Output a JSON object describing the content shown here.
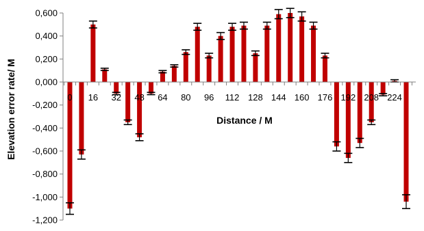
{
  "chart_data": {
    "type": "bar",
    "title": "",
    "xlabel": "Distance / M",
    "ylabel": "Elevation error rate/ M",
    "ylim": [
      -1.2,
      0.6
    ],
    "y_ticks": [
      "0,600",
      "0,400",
      "0,200",
      "0,000",
      "-0,200",
      "-0,400",
      "-0,600",
      "-0,800",
      "-1,000",
      "-1,200"
    ],
    "y_tick_values": [
      0.6,
      0.4,
      0.2,
      0.0,
      -0.2,
      -0.4,
      -0.6,
      -0.8,
      -1.0,
      -1.2
    ],
    "x": [
      0,
      8,
      16,
      24,
      32,
      40,
      48,
      56,
      64,
      72,
      80,
      88,
      96,
      104,
      112,
      120,
      128,
      136,
      144,
      152,
      160,
      168,
      176,
      184,
      192,
      200,
      208,
      216,
      224,
      232
    ],
    "x_tick_labels": [
      "0",
      "16",
      "32",
      "48",
      "64",
      "80",
      "96",
      "112",
      "128",
      "144",
      "160",
      "176",
      "192",
      "208",
      "224"
    ],
    "x_tick_positions": [
      0,
      16,
      32,
      48,
      64,
      80,
      96,
      112,
      128,
      144,
      160,
      176,
      192,
      208,
      224
    ],
    "values": [
      -1.1,
      -0.63,
      0.5,
      0.11,
      -0.1,
      -0.35,
      -0.48,
      -0.1,
      0.09,
      0.14,
      0.26,
      0.48,
      0.23,
      0.4,
      0.48,
      0.49,
      0.25,
      0.49,
      0.59,
      0.6,
      0.57,
      0.49,
      0.23,
      -0.56,
      -0.66,
      -0.53,
      -0.35,
      -0.11,
      0.01,
      -1.04
    ],
    "error": [
      0.05,
      0.04,
      0.03,
      0.01,
      0.01,
      0.02,
      0.03,
      0.01,
      0.01,
      0.01,
      0.02,
      0.03,
      0.02,
      0.03,
      0.03,
      0.03,
      0.02,
      0.03,
      0.04,
      0.04,
      0.04,
      0.03,
      0.02,
      0.04,
      0.04,
      0.04,
      0.02,
      0.01,
      0.01,
      0.06
    ],
    "bar_color": "#c00000",
    "error_color": "#000000",
    "grid": false,
    "legend": "none"
  }
}
